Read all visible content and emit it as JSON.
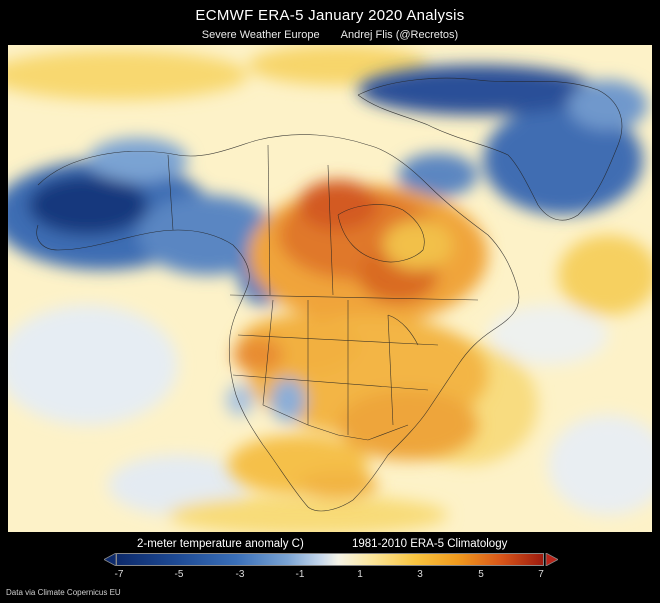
{
  "header": {
    "title": "ECMWF ERA-5   January 2020  Analysis",
    "subtitle_left": "Severe Weather Europe",
    "subtitle_right": "Andrej Flis (@Recretos)"
  },
  "legend": {
    "variable_label": "2-meter temperature anomaly C)",
    "climatology_label": "1981-2010 ERA-5 Climatology",
    "ticks": [
      "-7",
      "-5",
      "-3",
      "-1",
      "1",
      "3",
      "5",
      "7"
    ],
    "colors": {
      "cold_extreme": "#0d2a6b",
      "cold": "#3a6fb8",
      "neutral": "#f5f3e6",
      "warm": "#f8c440",
      "warm_extreme": "#9c1b0f"
    }
  },
  "footer": {
    "credit": "Data via Climate Copernicus EU"
  }
}
